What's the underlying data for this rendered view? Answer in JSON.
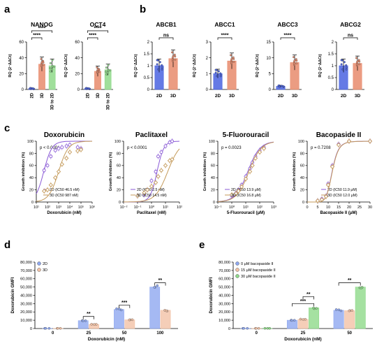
{
  "colors": {
    "blue": "#4a63e0",
    "salmon": "#e88b6c",
    "green": "#8fd98a",
    "olive": "#c9c27a",
    "purple": "#8a5ad6",
    "tan": "#c49a5a",
    "light_blue": "#8fa8f0",
    "peach": "#f2c2a6"
  },
  "panels": {
    "a": {
      "letter": "a",
      "ylabel": "RQ (2⁻ΔΔCt)",
      "names": [
        "NANOG",
        "OCT4"
      ]
    },
    "b": {
      "letter": "b",
      "ylabel": "RQ (2⁻ΔΔCt)",
      "names": [
        "ABCB1",
        "ABCC1",
        "ABCC3",
        "ABCG2"
      ]
    },
    "c": {
      "letter": "c",
      "ylabel": "Growth inhibition (%)"
    },
    "d": {
      "letter": "d",
      "ylabel": "Doxorubicin GMFI",
      "xlabel": "Doxorubicin (nM)"
    },
    "e": {
      "letter": "e",
      "ylabel": "Doxorubicin GMFI",
      "xlabel": "Doxorubicin (nM)"
    }
  },
  "chart_data": [
    {
      "id": "a1",
      "type": "bar",
      "title": "NANOG",
      "categories": [
        "2D",
        "3D",
        "3D to 2D"
      ],
      "values": [
        1.0,
        32.0,
        30.0
      ],
      "ylim": [
        0,
        60
      ],
      "yticks": [
        0,
        20,
        40,
        60
      ],
      "sig": [
        {
          "from": 0,
          "to": 1,
          "label": "****"
        },
        {
          "from": 0,
          "to": 2,
          "label": "****"
        }
      ]
    },
    {
      "id": "a2",
      "type": "bar",
      "title": "OCT4",
      "categories": [
        "2D",
        "3D",
        "3D to 2D"
      ],
      "values": [
        1.0,
        23.0,
        25.0
      ],
      "ylim": [
        0,
        60
      ],
      "yticks": [
        0,
        20,
        40,
        60
      ],
      "sig": [
        {
          "from": 0,
          "to": 1,
          "label": "****"
        },
        {
          "from": 0,
          "to": 2,
          "label": "****"
        }
      ]
    },
    {
      "id": "b1",
      "type": "bar",
      "title": "ABCB1",
      "categories": [
        "2D",
        "3D"
      ],
      "values": [
        1.0,
        1.3
      ],
      "ylim": [
        0,
        2.0
      ],
      "yticks": [
        0.0,
        0.5,
        1.0,
        1.5,
        2.0
      ],
      "sig": [
        {
          "from": 0,
          "to": 1,
          "label": "ns"
        }
      ]
    },
    {
      "id": "b2",
      "type": "bar",
      "title": "ABCC1",
      "categories": [
        "2D",
        "3D"
      ],
      "values": [
        1.0,
        1.8
      ],
      "ylim": [
        0,
        3
      ],
      "yticks": [
        0,
        1,
        2,
        3
      ],
      "sig": [
        {
          "from": 0,
          "to": 1,
          "label": "****"
        }
      ]
    },
    {
      "id": "b3",
      "type": "bar",
      "title": "ABCC3",
      "categories": [
        "2D",
        "3D"
      ],
      "values": [
        1.0,
        8.5
      ],
      "ylim": [
        0,
        15
      ],
      "yticks": [
        0,
        5,
        10,
        15
      ],
      "sig": [
        {
          "from": 0,
          "to": 1,
          "label": "****"
        }
      ]
    },
    {
      "id": "b4",
      "type": "bar",
      "title": "ABCG2",
      "categories": [
        "2D",
        "3D"
      ],
      "values": [
        1.0,
        1.1
      ],
      "ylim": [
        0,
        2.0
      ],
      "yticks": [
        0.0,
        0.5,
        1.0,
        1.5,
        2.0
      ],
      "sig": [
        {
          "from": 0,
          "to": 1,
          "label": "ns"
        }
      ]
    },
    {
      "id": "c1",
      "type": "line",
      "title": "Doxorubicin",
      "xlabel": "Doxorubicin (nM)",
      "xscale": "log",
      "xlim": [
        10,
        1000000
      ],
      "ylim": [
        0,
        100
      ],
      "yticks": [
        0,
        20,
        40,
        60,
        80,
        100
      ],
      "xticks": [
        10,
        100,
        1000,
        10000,
        100000,
        1000000
      ],
      "xticklabels": [
        "10¹",
        "10²",
        "10³",
        "10⁴",
        "10⁵",
        "10⁶"
      ],
      "pvalue": "p < 0.0001",
      "legend_position": "bottom-right",
      "series": [
        {
          "name": "2D (IC50 46.5 nM)",
          "ic50": 46.5,
          "hill": 1.2,
          "x": [
            50,
            100,
            200,
            500,
            1000,
            2000,
            5000,
            10000,
            50000,
            100000
          ],
          "y": [
            52,
            60,
            75,
            85,
            88,
            90,
            92,
            94,
            90,
            88
          ]
        },
        {
          "name": "3D (IC50 987 nM)",
          "ic50": 987,
          "hill": 1.0,
          "x": [
            50,
            100,
            200,
            500,
            1000,
            2000,
            5000,
            10000,
            50000,
            100000
          ],
          "y": [
            18,
            20,
            28,
            40,
            50,
            62,
            72,
            82,
            84,
            86
          ]
        }
      ]
    },
    {
      "id": "c2",
      "type": "line",
      "title": "Paclitaxel",
      "xlabel": "Paclitaxel (nM)",
      "xscale": "log",
      "xlim": [
        0.01,
        100
      ],
      "ylim": [
        0,
        100
      ],
      "yticks": [
        0,
        20,
        40,
        60,
        80,
        100
      ],
      "xticks": [
        0.01,
        0.1,
        1,
        10,
        100
      ],
      "xticklabels": [
        "10⁻²",
        "10⁻¹",
        "10⁰",
        "10¹",
        "10²"
      ],
      "pvalue": "p < 0.0001",
      "legend_position": "bottom-right",
      "series": [
        {
          "name": "2D (IC50 2.5 nM)",
          "ic50": 2.5,
          "hill": 1.8,
          "x": [
            0.1,
            0.3,
            0.5,
            1,
            2,
            3,
            5,
            10,
            20,
            30
          ],
          "y": [
            10,
            12,
            20,
            35,
            50,
            75,
            82,
            92,
            98,
            100
          ]
        },
        {
          "name": "3D (IC50 14.5 nM)",
          "ic50": 14.5,
          "hill": 1.0,
          "x": [
            0.1,
            0.3,
            0.5,
            1,
            2,
            3,
            5,
            10,
            20,
            30
          ],
          "y": [
            10,
            15,
            20,
            26,
            32,
            42,
            52,
            60,
            68,
            70
          ]
        }
      ]
    },
    {
      "id": "c3",
      "type": "line",
      "title": "5-Fluorouracil",
      "xlabel": "5-Fluorouracil (μM)",
      "xscale": "log",
      "xlim": [
        0.1,
        1000
      ],
      "ylim": [
        0,
        100
      ],
      "yticks": [
        0,
        20,
        40,
        60,
        80,
        100
      ],
      "xticks": [
        0.1,
        1,
        10,
        100,
        1000
      ],
      "xticklabels": [
        "10⁻¹",
        "10⁰",
        "10¹",
        "10²",
        "10³"
      ],
      "pvalue": "p = 0.0023",
      "legend_position": "bottom-right",
      "series": [
        {
          "name": "2D (IC50 13.9 μM)",
          "ic50": 13.9,
          "hill": 1.0,
          "x": [
            1,
            2,
            3,
            5,
            10,
            20,
            30,
            50,
            100,
            200
          ],
          "y": [
            10,
            15,
            20,
            28,
            42,
            55,
            65,
            75,
            85,
            90
          ]
        },
        {
          "name": "3D (IC50 16.8 μM)",
          "ic50": 16.8,
          "hill": 1.0,
          "x": [
            1,
            2,
            3,
            5,
            10,
            20,
            30,
            50,
            100,
            200
          ],
          "y": [
            12,
            14,
            18,
            25,
            38,
            50,
            60,
            72,
            82,
            88
          ]
        }
      ]
    },
    {
      "id": "c4",
      "type": "line",
      "title": "Bacopaside II",
      "xlabel": "Bacopaside II (μM)",
      "xscale": "linear",
      "xlim": [
        0,
        30
      ],
      "ylim": [
        0,
        100
      ],
      "yticks": [
        0,
        20,
        40,
        60,
        80,
        100
      ],
      "xticks": [
        0,
        5,
        10,
        15,
        20,
        25,
        30
      ],
      "xticklabels": [
        "0",
        "5",
        "10",
        "15",
        "20",
        "25",
        "30"
      ],
      "pvalue": "p = 0.7208",
      "legend_position": "bottom-right",
      "series": [
        {
          "name": "2D (IC50 11.9 μM)",
          "ic50": 11.9,
          "hill": 8,
          "x": [
            5,
            7,
            9,
            10,
            12,
            15,
            20,
            30
          ],
          "y": [
            2,
            5,
            10,
            30,
            60,
            95,
            100,
            100
          ]
        },
        {
          "name": "3D (IC50 12.0 μM)",
          "ic50": 12.0,
          "hill": 8,
          "x": [
            5,
            7,
            9,
            10,
            12,
            15,
            20,
            30
          ],
          "y": [
            2,
            4,
            9,
            28,
            58,
            94,
            100,
            100
          ]
        }
      ]
    },
    {
      "id": "d",
      "type": "bar",
      "categories": [
        "0",
        "25",
        "50",
        "100"
      ],
      "ylim": [
        0,
        80000
      ],
      "yticks": [
        0,
        10000,
        20000,
        30000,
        40000,
        50000,
        60000,
        70000,
        80000
      ],
      "yticklabels": [
        "0",
        "10,000",
        "20,000",
        "30,000",
        "40,000",
        "50,000",
        "60,000",
        "70,000",
        "80,000"
      ],
      "legend_position": "top-left",
      "series": [
        {
          "name": "2D",
          "values": [
            200,
            9500,
            23000,
            50000
          ]
        },
        {
          "name": "3D",
          "values": [
            200,
            5000,
            10500,
            22000
          ]
        }
      ],
      "sig": [
        {
          "group": 1,
          "label": "**"
        },
        {
          "group": 2,
          "label": "***"
        },
        {
          "group": 3,
          "label": "**"
        }
      ]
    },
    {
      "id": "e",
      "type": "bar",
      "categories": [
        "0",
        "25",
        "50"
      ],
      "ylim": [
        0,
        80000
      ],
      "yticks": [
        0,
        10000,
        20000,
        30000,
        40000,
        50000,
        60000,
        70000,
        80000
      ],
      "yticklabels": [
        "0",
        "10,000",
        "20,000",
        "30,000",
        "40,000",
        "50,000",
        "60,000",
        "70,000",
        "80,000"
      ],
      "legend_position": "top-left",
      "series": [
        {
          "name": "0 μM bacopaside II",
          "values": [
            200,
            10000,
            22000
          ]
        },
        {
          "name": "15 μM bacopaside II",
          "values": [
            200,
            11000,
            21500
          ]
        },
        {
          "name": "30 μM bacopaside II",
          "values": [
            200,
            25000,
            50000
          ]
        }
      ],
      "sig": [
        {
          "group": 1,
          "a": 0,
          "b": 2,
          "label": "***"
        },
        {
          "group": 1,
          "a": 1,
          "b": 2,
          "label": "**"
        },
        {
          "group": 2,
          "a": 0,
          "b": 2,
          "label": "**"
        }
      ]
    }
  ]
}
